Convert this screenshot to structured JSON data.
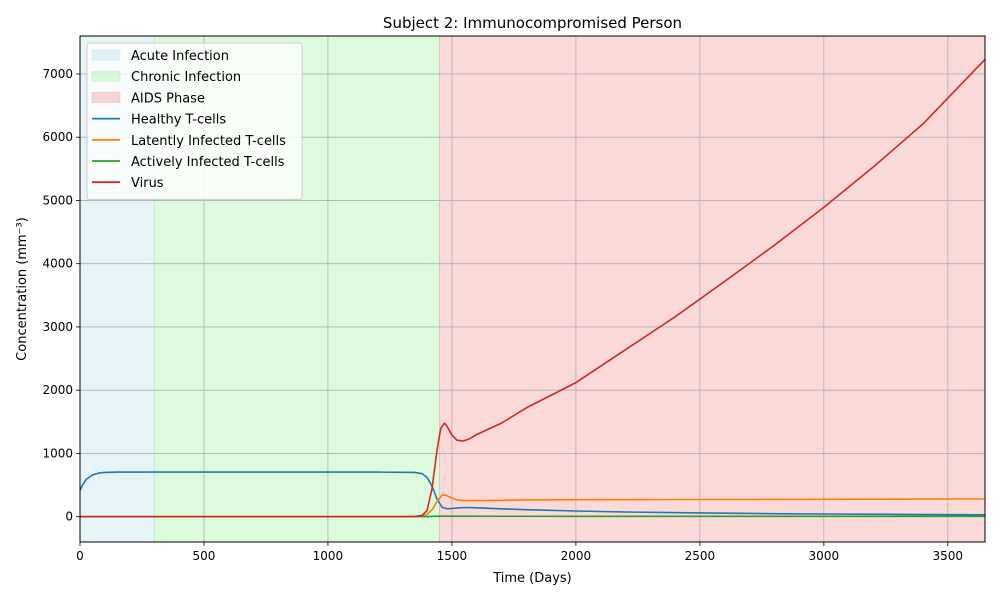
{
  "chart_data": {
    "type": "line",
    "title": "Subject 2: Immunocompromised Person",
    "xlabel": "Time (Days)",
    "ylabel": "Concentration (mm⁻³)",
    "xlim": [
      0,
      3650
    ],
    "ylim": [
      -400,
      7600
    ],
    "xticks": [
      0,
      500,
      1000,
      1500,
      2000,
      2500,
      3000,
      3500
    ],
    "yticks": [
      0,
      1000,
      2000,
      3000,
      4000,
      5000,
      6000,
      7000
    ],
    "grid": true,
    "legend_position": "upper-left",
    "phases": [
      {
        "name": "Acute Infection",
        "start": 0,
        "end": 300,
        "color": "#add8e6"
      },
      {
        "name": "Chronic Infection",
        "start": 300,
        "end": 1450,
        "color": "#90ee90"
      },
      {
        "name": "AIDS Phase",
        "start": 1450,
        "end": 3650,
        "color": "#f08080"
      }
    ],
    "series": [
      {
        "name": "Healthy T-cells",
        "color": "#1f77b4",
        "x": [
          0,
          10,
          25,
          50,
          75,
          100,
          150,
          200,
          300,
          500,
          800,
          1000,
          1200,
          1350,
          1380,
          1400,
          1420,
          1440,
          1460,
          1480,
          1500,
          1530,
          1560,
          1600,
          1700,
          1800,
          2000,
          2200,
          2500,
          2800,
          3000,
          3300,
          3650
        ],
        "y": [
          420,
          500,
          590,
          660,
          690,
          700,
          705,
          705,
          705,
          705,
          705,
          705,
          705,
          700,
          680,
          620,
          480,
          280,
          150,
          125,
          130,
          140,
          145,
          140,
          125,
          110,
          90,
          75,
          60,
          48,
          42,
          36,
          30
        ]
      },
      {
        "name": "Latently Infected T-cells",
        "color": "#ff7f0e",
        "x": [
          0,
          500,
          1000,
          1350,
          1380,
          1400,
          1420,
          1440,
          1460,
          1470,
          1480,
          1500,
          1520,
          1550,
          1600,
          1700,
          1800,
          2000,
          2500,
          3000,
          3650
        ],
        "y": [
          0,
          0,
          0,
          2,
          10,
          35,
          110,
          240,
          340,
          345,
          330,
          295,
          265,
          255,
          255,
          260,
          265,
          268,
          272,
          275,
          280
        ]
      },
      {
        "name": "Actively Infected T-cells",
        "color": "#2ca02c",
        "x": [
          0,
          1000,
          1400,
          1450,
          1500,
          2000,
          3650
        ],
        "y": [
          0,
          0,
          2,
          10,
          8,
          6,
          6
        ]
      },
      {
        "name": "Virus",
        "color": "#d62728",
        "x": [
          0,
          500,
          1000,
          1300,
          1350,
          1380,
          1400,
          1420,
          1440,
          1455,
          1470,
          1480,
          1500,
          1520,
          1545,
          1570,
          1600,
          1700,
          1800,
          2000,
          2200,
          2400,
          2600,
          2800,
          3000,
          3200,
          3400,
          3650
        ],
        "y": [
          0,
          0,
          0,
          0,
          5,
          20,
          100,
          450,
          1050,
          1400,
          1480,
          1430,
          1290,
          1210,
          1195,
          1230,
          1300,
          1480,
          1720,
          2120,
          2640,
          3160,
          3720,
          4290,
          4890,
          5530,
          6210,
          7230
        ]
      }
    ]
  }
}
